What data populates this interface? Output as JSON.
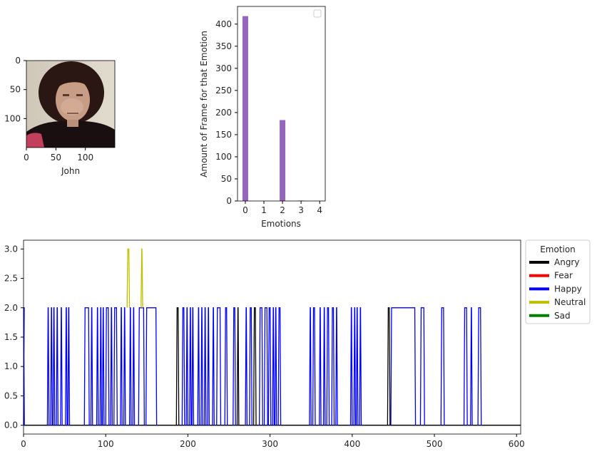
{
  "chart_data": [
    {
      "type": "image",
      "xlabel": "John",
      "xticks": [
        "0",
        "50",
        "100"
      ],
      "yticks": [
        "0",
        "50",
        "100"
      ],
      "xlim": [
        0,
        150
      ],
      "ylim": [
        150,
        0
      ]
    },
    {
      "type": "bar",
      "xlabel": "Emotions",
      "ylabel": "Amount of Frame for that Emotion",
      "categories": [
        0,
        1,
        2,
        3,
        4
      ],
      "values": [
        418,
        0,
        183,
        1,
        0
      ],
      "xticks": [
        "0",
        "1",
        "2",
        "3",
        "4"
      ],
      "yticks": [
        "0",
        "50",
        "100",
        "150",
        "200",
        "250",
        "300",
        "350",
        "400"
      ],
      "ylim": [
        0,
        440
      ],
      "bar_color": "#9467bd",
      "legend": "top-right (empty)"
    },
    {
      "type": "line",
      "xlim": [
        0,
        605
      ],
      "ylim": [
        -0.15,
        3.15
      ],
      "xticks": [
        "0",
        "100",
        "200",
        "300",
        "400",
        "500",
        "600"
      ],
      "yticks": [
        "0.0",
        "0.5",
        "1.0",
        "1.5",
        "2.0",
        "2.5",
        "3.0"
      ],
      "legend": {
        "title": "Emotion",
        "placement": "outside right",
        "entries": [
          {
            "label": "Angry",
            "color": "#000000"
          },
          {
            "label": "Fear",
            "color": "#ff0000"
          },
          {
            "label": "Happy",
            "color": "#0000ff"
          },
          {
            "label": "Neutral",
            "color": "#bfbf00"
          },
          {
            "label": "Sad",
            "color": "#008000"
          }
        ]
      },
      "series": [
        {
          "name": "Happy",
          "color": "#0000ff",
          "base": 0,
          "segments": [
            [
              0,
              1,
              2
            ],
            [
              29,
              31,
              2
            ],
            [
              33,
              35,
              2
            ],
            [
              36,
              38,
              2
            ],
            [
              40,
              42,
              2
            ],
            [
              45,
              47,
              2
            ],
            [
              51,
              53,
              2
            ],
            [
              54,
              56,
              2
            ],
            [
              74,
              80,
              2
            ],
            [
              82,
              84,
              2
            ],
            [
              89,
              91,
              2
            ],
            [
              93,
              95,
              2
            ],
            [
              96,
              98,
              2
            ],
            [
              100,
              104,
              2
            ],
            [
              106,
              108,
              2
            ],
            [
              110,
              114,
              2
            ],
            [
              118,
              120,
              2
            ],
            [
              122,
              124,
              2
            ],
            [
              129,
              131,
              2
            ],
            [
              133,
              135,
              2
            ],
            [
              140,
              147,
              2
            ],
            [
              149,
              162,
              2
            ],
            [
              193,
              196,
              2
            ],
            [
              198,
              200,
              2
            ],
            [
              202,
              204,
              2
            ],
            [
              205,
              207,
              2
            ],
            [
              212,
              214,
              2
            ],
            [
              216,
              218,
              2
            ],
            [
              220,
              222,
              2
            ],
            [
              224,
              226,
              2
            ],
            [
              230,
              232,
              2
            ],
            [
              235,
              240,
              2
            ],
            [
              245,
              248,
              2
            ],
            [
              255,
              258,
              2
            ],
            [
              270,
              272,
              2
            ],
            [
              275,
              278,
              2
            ],
            [
              287,
              291,
              2
            ],
            [
              293,
              297,
              2
            ],
            [
              298,
              301,
              2
            ],
            [
              303,
              305,
              2
            ],
            [
              306,
              308,
              2
            ],
            [
              310,
              313,
              2
            ],
            [
              348,
              350,
              2
            ],
            [
              352,
              355,
              2
            ],
            [
              360,
              362,
              2
            ],
            [
              365,
              367,
              2
            ],
            [
              369,
              372,
              2
            ],
            [
              375,
              378,
              2
            ],
            [
              380,
              382,
              2
            ],
            [
              398,
              400,
              2
            ],
            [
              402,
              404,
              2
            ],
            [
              405,
              407,
              2
            ],
            [
              409,
              411,
              2
            ],
            [
              447,
              477,
              2
            ],
            [
              483,
              488,
              2
            ],
            [
              508,
              512,
              2
            ],
            [
              536,
              540,
              2
            ],
            [
              544,
              546,
              2
            ],
            [
              553,
              557,
              2
            ]
          ]
        },
        {
          "name": "Neutral",
          "color": "#bfbf00",
          "base": 2,
          "segments": [
            [
              126,
              129,
              3
            ],
            [
              143,
              145,
              3
            ]
          ]
        },
        {
          "name": "Angry",
          "color": "#000000",
          "base": 0,
          "segments": [
            [
              186,
              189,
              2
            ],
            [
              260,
              262,
              2
            ],
            [
              280,
              283,
              2
            ],
            [
              443,
              446,
              2
            ]
          ]
        }
      ]
    }
  ]
}
